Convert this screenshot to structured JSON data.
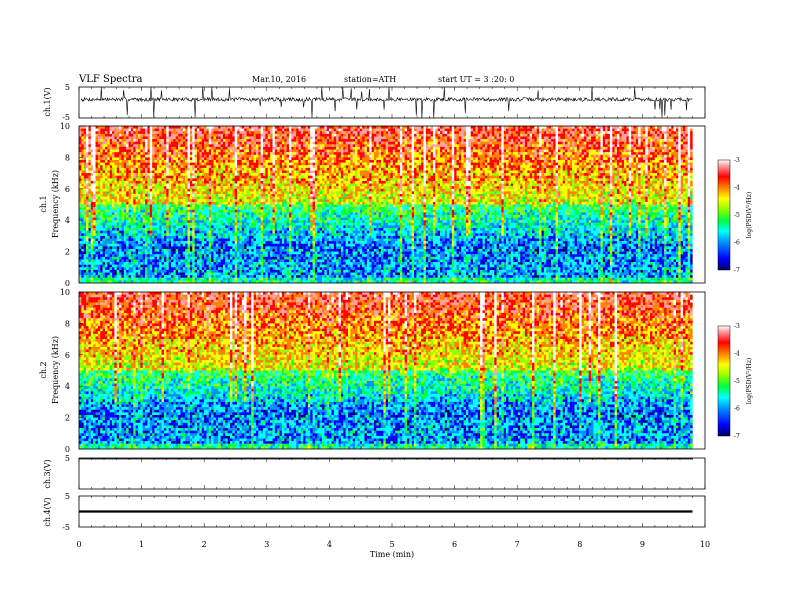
{
  "header": {
    "title": "VLF  Spectra",
    "date": "Mar.10, 2016",
    "station": "station=ATH",
    "start": "start  UT  =   3  :20: 0"
  },
  "colors": {
    "spectrogram_scale": [
      "#000060",
      "#0000ff",
      "#0090ff",
      "#00ffff",
      "#00ff40",
      "#90ff00",
      "#ffff00",
      "#ff8000",
      "#ff0000",
      "#ffa0a0",
      "#ffffff"
    ],
    "trace": "#000000"
  },
  "chart_data": [
    {
      "type": "line",
      "ylabel": "ch.1(V)",
      "ylim": [
        -5,
        5
      ],
      "yticks": [
        "5",
        "-5"
      ],
      "xlim": [
        0,
        10
      ],
      "baseline_v": 1.0,
      "description_series": "waveform"
    },
    {
      "type": "heatmap",
      "ylabel": "ch.1\nFrequency  (kHz)",
      "ylabel_lines": [
        "ch.1",
        "Frequency  (kHz)"
      ],
      "ylim": [
        0,
        10
      ],
      "yticks": [
        "0",
        "2",
        "4",
        "6",
        "8",
        "10"
      ],
      "xlim": [
        0,
        10
      ],
      "data_end_min": 9.8,
      "colorbar": {
        "label": "log(PSD(V²/Hz)",
        "range": [
          -7,
          -3
        ],
        "ticks": [
          "-3",
          "-4",
          "-5",
          "-6",
          "-7"
        ]
      }
    },
    {
      "type": "heatmap",
      "ylabel": "ch.2\nFrequency  (kHz)",
      "ylabel_lines": [
        "ch.2",
        "Frequency  (kHz)"
      ],
      "ylim": [
        0,
        10
      ],
      "yticks": [
        "0",
        "2",
        "4",
        "6",
        "8",
        "10"
      ],
      "xlim": [
        0,
        10
      ],
      "data_end_min": 9.8,
      "colorbar": {
        "label": "log(PSD(V²/Hz)",
        "range": [
          -7,
          -3
        ],
        "ticks": [
          "-3",
          "-4",
          "-5",
          "-6",
          "-7"
        ]
      }
    },
    {
      "type": "line",
      "ylabel": "ch.3(V)",
      "ylim": [
        -5,
        5
      ],
      "yticks": [
        "5"
      ],
      "xlim": [
        0,
        10
      ],
      "baseline_v": 5.0
    },
    {
      "type": "line",
      "ylabel": "ch.4(V)",
      "ylim": [
        -5,
        5
      ],
      "yticks": [
        "5",
        "-5"
      ],
      "xlim": [
        0,
        10
      ],
      "baseline_v": 0.0
    }
  ],
  "xaxis": {
    "label": "Time  (min)",
    "ticks": [
      "0",
      "1",
      "2",
      "3",
      "4",
      "5",
      "6",
      "7",
      "8",
      "9",
      "10"
    ]
  }
}
